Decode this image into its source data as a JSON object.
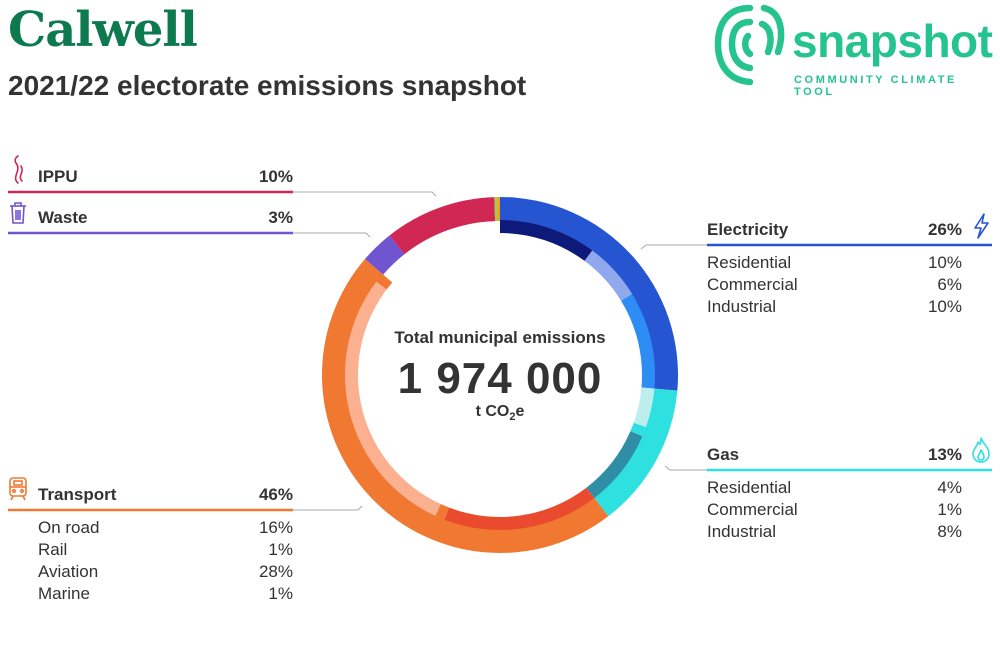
{
  "header": {
    "title": "Calwell",
    "subtitle": "2021/22 electorate emissions snapshot"
  },
  "logo": {
    "wordmark": "snapshot",
    "tagline": "COMMUNITY CLIMATE TOOL",
    "color": "#25c48e"
  },
  "center": {
    "label": "Total municipal emissions",
    "value": "1 974 000",
    "unit_prefix": "t CO",
    "unit_subscript": "2",
    "unit_suffix": "e"
  },
  "chart_data": {
    "type": "pie",
    "variant": "donut",
    "total": 1974000,
    "unit": "t CO2e",
    "categories": [
      {
        "name": "Electricity",
        "percent": "26%",
        "share": 26,
        "color": "#2655d1",
        "icon": "lightning-icon",
        "subcategories": [
          {
            "name": "Residential",
            "percent": "10%",
            "share": 10,
            "color": "#0d1a7a"
          },
          {
            "name": "Commercial",
            "percent": "6%",
            "share": 6,
            "color": "#8fa8ee"
          },
          {
            "name": "Industrial",
            "percent": "10%",
            "share": 10,
            "color": "#2e8cf5"
          }
        ]
      },
      {
        "name": "Gas",
        "percent": "13%",
        "share": 13,
        "color": "#2ee0e0",
        "icon": "flame-icon",
        "subcategories": [
          {
            "name": "Residential",
            "percent": "4%",
            "share": 4,
            "color": "#bdeeee"
          },
          {
            "name": "Commercial",
            "percent": "1%",
            "share": 1,
            "color": "#2ee0e0"
          },
          {
            "name": "Industrial",
            "percent": "8%",
            "share": 8,
            "color": "#2f8ea6"
          }
        ]
      },
      {
        "name": "Transport",
        "percent": "46%",
        "share": 46,
        "color": "#f07830",
        "icon": "train-icon",
        "subcategories": [
          {
            "name": "On road",
            "percent": "16%",
            "share": 16,
            "color": "#ea4b2e"
          },
          {
            "name": "Rail",
            "percent": "1%",
            "share": 1,
            "color": "#f07830"
          },
          {
            "name": "Aviation",
            "percent": "28%",
            "share": 28,
            "color": "#fbb090"
          },
          {
            "name": "Marine",
            "percent": "1%",
            "share": 1,
            "color": "#f07830"
          }
        ]
      },
      {
        "name": "Waste",
        "percent": "3%",
        "share": 3,
        "color": "#7055d0",
        "icon": "trash-icon",
        "subcategories": []
      },
      {
        "name": "IPPU",
        "percent": "10%",
        "share": 10,
        "color": "#d12755",
        "icon": "smoke-icon",
        "subcategories": []
      }
    ],
    "small_slices": [
      {
        "color": "#9ad14b",
        "share": 0.25
      },
      {
        "color": "#f2a01d",
        "share": 0.25
      }
    ]
  }
}
